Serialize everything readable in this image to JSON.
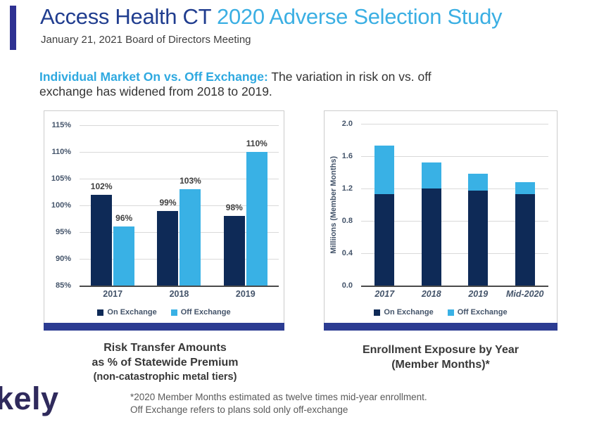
{
  "header": {
    "title_primary": "Access Health CT",
    "title_secondary": " 2020 Adverse Selection Study",
    "subtitle": "January 21, 2021 Board of Directors Meeting"
  },
  "heading": {
    "highlight": "Individual Market On vs. Off Exchange:",
    "line1_rest": " The variation in risk on vs. off",
    "line2": "exchange has widened from 2018 to 2019."
  },
  "colors": {
    "navy_bar": "#0e2a57",
    "light_blue_bar": "#39b1e5",
    "card_bottom_bar": "#2c3c92",
    "accent_bar": "#2e3192",
    "title_navy": "#203d8f",
    "title_cyan": "#3bafe3",
    "axis_text": "#44546a"
  },
  "chart_data": [
    {
      "type": "bar",
      "stacked": false,
      "title": "Risk Transfer Amounts as % of Statewide Premium (non-catastrophic metal tiers)",
      "categories": [
        "2017",
        "2018",
        "2019"
      ],
      "series": [
        {
          "name": "On Exchange",
          "color": "#0e2a57",
          "values": [
            102,
            99,
            98
          ]
        },
        {
          "name": "Off Exchange",
          "color": "#39b1e5",
          "values": [
            96,
            103,
            110
          ]
        }
      ],
      "data_labels": [
        "102%",
        "96%",
        "99%",
        "103%",
        "98%",
        "110%"
      ],
      "xlabel": "",
      "ylabel": "",
      "ylim": [
        85,
        115
      ],
      "ytick_step": 5,
      "tick_format": "percent",
      "grid": true,
      "legend_position": "bottom",
      "show_data_labels": true,
      "xlabel_italic": false
    },
    {
      "type": "bar",
      "stacked": true,
      "title": "Enrollment Exposure by Year (Member Months)*",
      "categories": [
        "2017",
        "2018",
        "2019",
        "Mid-2020"
      ],
      "series": [
        {
          "name": "On Exchange",
          "color": "#0e2a57",
          "values": [
            1.13,
            1.2,
            1.17,
            1.13
          ]
        },
        {
          "name": "Off Exchange",
          "color": "#39b1e5",
          "values": [
            0.6,
            0.32,
            0.21,
            0.15
          ]
        }
      ],
      "totals": [
        1.73,
        1.52,
        1.38,
        1.28
      ],
      "xlabel": "",
      "ylabel": "Milliions (Member Months)",
      "ylim": [
        0,
        2.0
      ],
      "ytick_step": 0.4,
      "tick_format": "decimal1",
      "grid": true,
      "legend_position": "bottom",
      "show_data_labels": false,
      "xlabel_italic": true
    }
  ],
  "captions": {
    "left": {
      "line1": "Risk Transfer Amounts",
      "line2": "as % of Statewide Premium",
      "line3": "(non-catastrophic metal tiers)"
    },
    "right": {
      "line1": "Enrollment Exposure by Year",
      "line2": "(Member Months)*"
    }
  },
  "footnote": {
    "line1": "*2020 Member Months estimated as twelve times mid-year enrollment.",
    "line2": "Off Exchange refers to plans sold only off-exchange"
  },
  "logo_text": "kely"
}
